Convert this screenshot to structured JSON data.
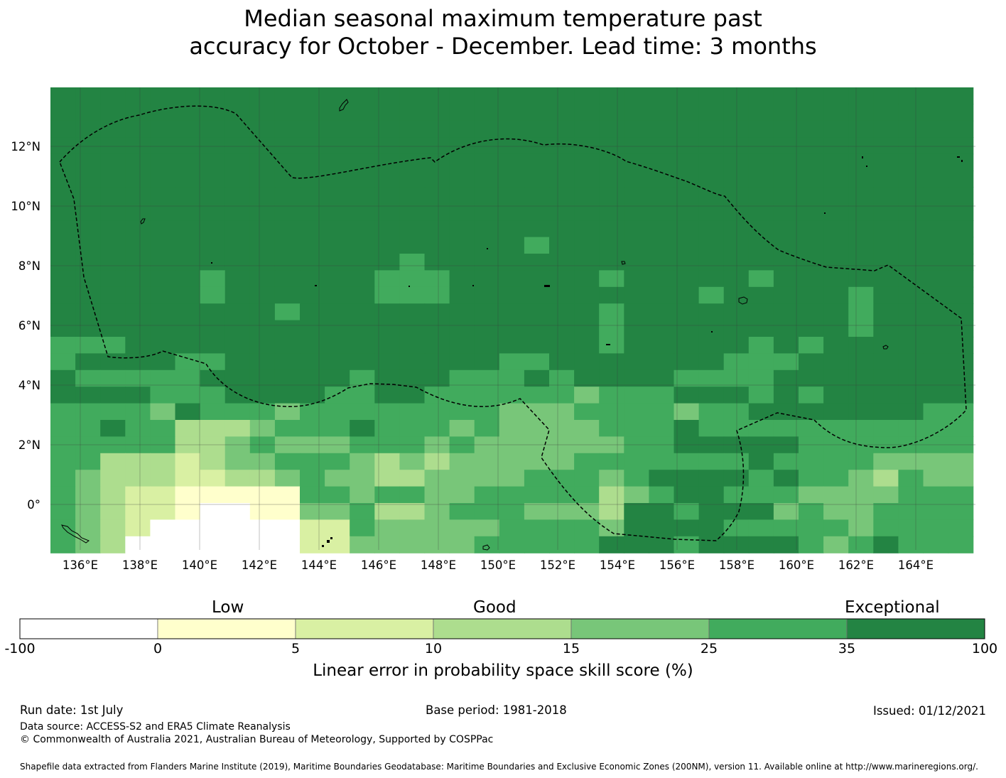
{
  "title": {
    "line1": "Median seasonal maximum temperature past",
    "line2": "accuracy for October - December. Lead time: 3 months"
  },
  "map": {
    "lat_labels": [
      "12°N",
      "10°N",
      "8°N",
      "6°N",
      "4°N",
      "2°N",
      "0°"
    ],
    "lon_labels": [
      "136°E",
      "138°E",
      "140°E",
      "142°E",
      "144°E",
      "146°E",
      "148°E",
      "150°E",
      "152°E",
      "154°E",
      "156°E",
      "158°E",
      "160°E",
      "162°E",
      "164°E"
    ],
    "extent": {
      "lon_min": 134,
      "lon_max": 165,
      "lat_min": -1.5,
      "lat_max": 14
    },
    "cell_size_deg": 0.833,
    "background_class": 6,
    "grid_lines": true,
    "eez_boundary": "dashed"
  },
  "colorbar": {
    "categories": [
      "Low",
      "Good",
      "Exceptional"
    ],
    "ticks": [
      "-100",
      "0",
      "5",
      "10",
      "15",
      "25",
      "35",
      "100"
    ],
    "colors": [
      "#ffffff",
      "#ffffcc",
      "#d9f0a3",
      "#addd8e",
      "#78c679",
      "#41ab5d",
      "#238443"
    ],
    "label": "Linear error in probability space skill score (%)"
  },
  "footer": {
    "run_date": "Run date: 1st July",
    "base_period": "Base period: 1981-2018",
    "issued": "Issued: 01/12/2021",
    "data_source": "Data source: ACCESS-S2 and ERA5 Climate Reanalysis",
    "copyright": "© Commonwealth of Australia 2021, Australian Bureau of Meteorology, Supported by COSPPac",
    "shapefile": "Shapefile data extracted from Flanders Marine Institute (2019), Maritime Boundaries Geodatabase: Maritime Boundaries and Exclusive Economic Zones (200NM), version 11. Available online at http://www.marineregions.org/."
  }
}
